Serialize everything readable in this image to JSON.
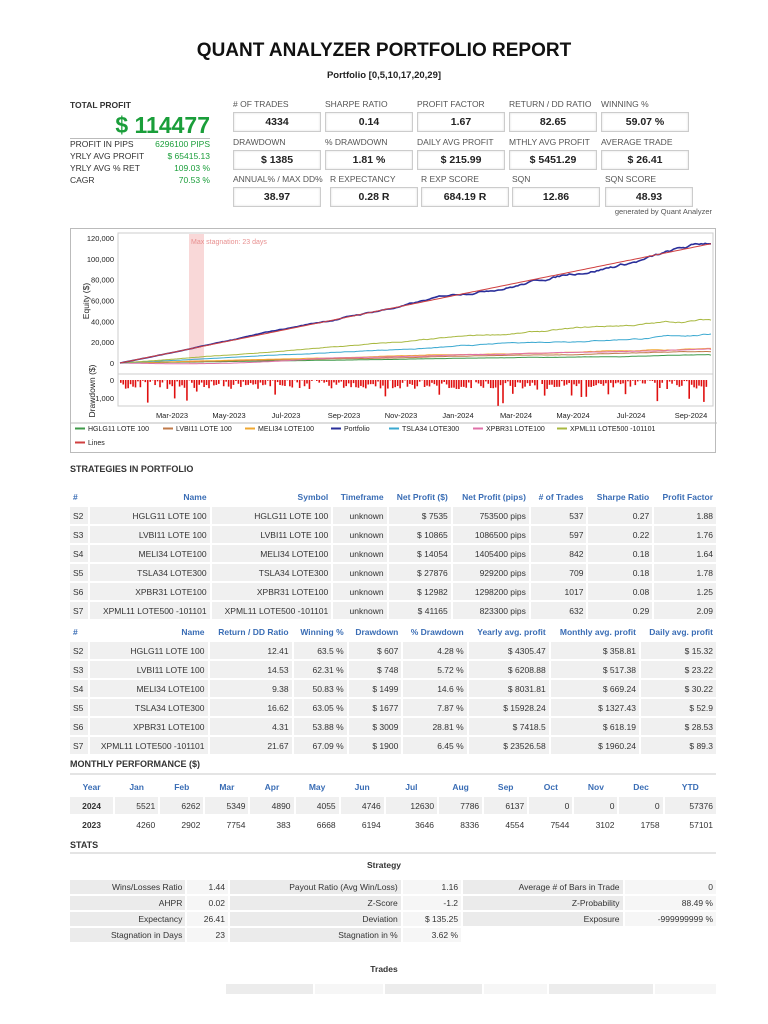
{
  "header": {
    "title": "QUANT ANALYZER PORTFOLIO REPORT",
    "subtitle": "Portfolio [0,5,10,17,20,29]"
  },
  "summary": {
    "total_profit_label": "TOTAL PROFIT",
    "total_profit": "$ 114477",
    "rows": [
      {
        "label": "PROFIT IN PIPS",
        "value": "6296100 PIPS"
      },
      {
        "label": "YRLY AVG PROFIT",
        "value": "$ 65415.13"
      },
      {
        "label": "YRLY AVG % RET",
        "value": "109.03 %"
      },
      {
        "label": "CAGR",
        "value": "70.53 %"
      }
    ]
  },
  "kpis": [
    {
      "label": "# OF TRADES",
      "value": "4334"
    },
    {
      "label": "SHARPE RATIO",
      "value": "0.14"
    },
    {
      "label": "PROFIT FACTOR",
      "value": "1.67"
    },
    {
      "label": "RETURN / DD RATIO",
      "value": "82.65"
    },
    {
      "label": "WINNING %",
      "value": "59.07 %"
    },
    {
      "label": "DRAWDOWN",
      "value": "$ 1385"
    },
    {
      "label": "% DRAWDOWN",
      "value": "1.81 %"
    },
    {
      "label": "DAILY AVG PROFIT",
      "value": "$ 215.99"
    },
    {
      "label": "MTHLY AVG PROFIT",
      "value": "$ 5451.29"
    },
    {
      "label": "AVERAGE TRADE",
      "value": "$ 26.41"
    },
    {
      "label": "ANNUAL% / MAX DD%",
      "value": "38.97"
    },
    {
      "label": "R EXPECTANCY",
      "value": "0.28 R"
    },
    {
      "label": "R EXP SCORE",
      "value": "684.19 R"
    },
    {
      "label": "SQN",
      "value": "12.86"
    },
    {
      "label": "SQN SCORE",
      "value": "48.93"
    }
  ],
  "generated_by": "generated by Quant Analyzer",
  "chart": {
    "equity_ylabel": "Equity ($)",
    "drawdown_ylabel": "Drawdown ($)",
    "equity_ticks": [
      "120,000",
      "100,000",
      "80,000",
      "60,000",
      "40,000",
      "20,000",
      "0"
    ],
    "drawdown_ticks": [
      "0",
      "-1,000"
    ],
    "x_ticks": [
      "Mar-2023",
      "May-2023",
      "Jul-2023",
      "Sep-2023",
      "Nov-2023",
      "Jan-2024",
      "Mar-2024",
      "May-2024",
      "Jul-2024",
      "Sep-2024"
    ],
    "stagnation_label": "Max stagnation: 23 days",
    "series": [
      {
        "name": "HGLG11 LOTE 100",
        "color": "#3f9a4a",
        "final": 7535
      },
      {
        "name": "LVBI11  LOTE 100",
        "color": "#c07a4a",
        "final": 10865
      },
      {
        "name": "MELI34 LOTE100",
        "color": "#f0a830",
        "final": 14054
      },
      {
        "name": "Portfolio",
        "color": "#2a2f9a",
        "final": 114477
      },
      {
        "name": "TSLA34 LOTE300",
        "color": "#3aa8d0",
        "final": 27876
      },
      {
        "name": "XPBR31 LOTE100",
        "color": "#e070a8",
        "final": 12982
      },
      {
        "name": "XPML11 LOTE500 -101101",
        "color": "#a8b840",
        "final": 41165
      },
      {
        "name": "Lines",
        "color": "#d04040",
        "final": 114477
      }
    ]
  },
  "strategies": {
    "title": "STRATEGIES IN PORTFOLIO",
    "headers1": [
      "#",
      "Name",
      "Symbol",
      "Timeframe",
      "Net Profit ($)",
      "Net Profit (pips)",
      "# of Trades",
      "Sharpe Ratio",
      "Profit Factor"
    ],
    "rows1": [
      [
        "S2",
        "HGLG11 LOTE 100",
        "HGLG11 LOTE 100",
        "unknown",
        "$ 7535",
        "753500 pips",
        "537",
        "0.27",
        "1.88"
      ],
      [
        "S3",
        "LVBI11 LOTE 100",
        "LVBI11 LOTE 100",
        "unknown",
        "$ 10865",
        "1086500 pips",
        "597",
        "0.22",
        "1.76"
      ],
      [
        "S4",
        "MELI34 LOTE100",
        "MELI34 LOTE100",
        "unknown",
        "$ 14054",
        "1405400 pips",
        "842",
        "0.18",
        "1.64"
      ],
      [
        "S5",
        "TSLA34 LOTE300",
        "TSLA34 LOTE300",
        "unknown",
        "$ 27876",
        "929200 pips",
        "709",
        "0.18",
        "1.78"
      ],
      [
        "S6",
        "XPBR31 LOTE100",
        "XPBR31 LOTE100",
        "unknown",
        "$ 12982",
        "1298200 pips",
        "1017",
        "0.08",
        "1.25"
      ],
      [
        "S7",
        "XPML11 LOTE500 -101101",
        "XPML11 LOTE500 -101101",
        "unknown",
        "$ 41165",
        "823300 pips",
        "632",
        "0.29",
        "2.09"
      ]
    ],
    "headers2": [
      "#",
      "Name",
      "Return / DD Ratio",
      "Winning %",
      "Drawdown",
      "% Drawdown",
      "Yearly avg. profit",
      "Monthly avg. profit",
      "Daily avg. profit"
    ],
    "rows2": [
      [
        "S2",
        "HGLG11 LOTE 100",
        "12.41",
        "63.5 %",
        "$ 607",
        "4.28 %",
        "$ 4305.47",
        "$ 358.81",
        "$ 15.32"
      ],
      [
        "S3",
        "LVBI11 LOTE 100",
        "14.53",
        "62.31 %",
        "$ 748",
        "5.72 %",
        "$ 6208.88",
        "$ 517.38",
        "$ 23.22"
      ],
      [
        "S4",
        "MELI34 LOTE100",
        "9.38",
        "50.83 %",
        "$ 1499",
        "14.6 %",
        "$ 8031.81",
        "$ 669.24",
        "$ 30.22"
      ],
      [
        "S5",
        "TSLA34 LOTE300",
        "16.62",
        "63.05 %",
        "$ 1677",
        "7.87 %",
        "$ 15928.24",
        "$ 1327.43",
        "$ 52.9"
      ],
      [
        "S6",
        "XPBR31 LOTE100",
        "4.31",
        "53.88 %",
        "$ 3009",
        "28.81 %",
        "$ 7418.5",
        "$ 618.19",
        "$ 28.53"
      ],
      [
        "S7",
        "XPML11 LOTE500 -101101",
        "21.67",
        "67.09 %",
        "$ 1900",
        "6.45 %",
        "$ 23526.58",
        "$ 1960.24",
        "$ 89.3"
      ]
    ]
  },
  "monthly": {
    "title": "MONTHLY PERFORMANCE ($)",
    "headers": [
      "Year",
      "Jan",
      "Feb",
      "Mar",
      "Apr",
      "May",
      "Jun",
      "Jul",
      "Aug",
      "Sep",
      "Oct",
      "Nov",
      "Dec",
      "YTD"
    ],
    "rows": [
      [
        "2024",
        "5521",
        "6262",
        "5349",
        "4890",
        "4055",
        "4746",
        "12630",
        "7786",
        "6137",
        "0",
        "0",
        "0",
        "57376"
      ],
      [
        "2023",
        "4260",
        "2902",
        "7754",
        "383",
        "6668",
        "6194",
        "3646",
        "8336",
        "4554",
        "7544",
        "3102",
        "1758",
        "57101"
      ]
    ]
  },
  "stats": {
    "title": "STATS",
    "subtitle": "Strategy",
    "rows": [
      [
        "Wins/Losses Ratio",
        "1.44",
        "Payout Ratio (Avg Win/Loss)",
        "1.16",
        "Average # of Bars in Trade",
        "0"
      ],
      [
        "AHPR",
        "0.02",
        "Z-Score",
        "-1.2",
        "Z-Probability",
        "88.49 %"
      ],
      [
        "Expectancy",
        "26.41",
        "Deviation",
        "$ 135.25",
        "Exposure",
        "-999999999 %"
      ],
      [
        "Stagnation in Days",
        "23",
        "Stagnation in %",
        "3.62 %",
        "",
        ""
      ]
    ],
    "trades_title": "Trades"
  }
}
